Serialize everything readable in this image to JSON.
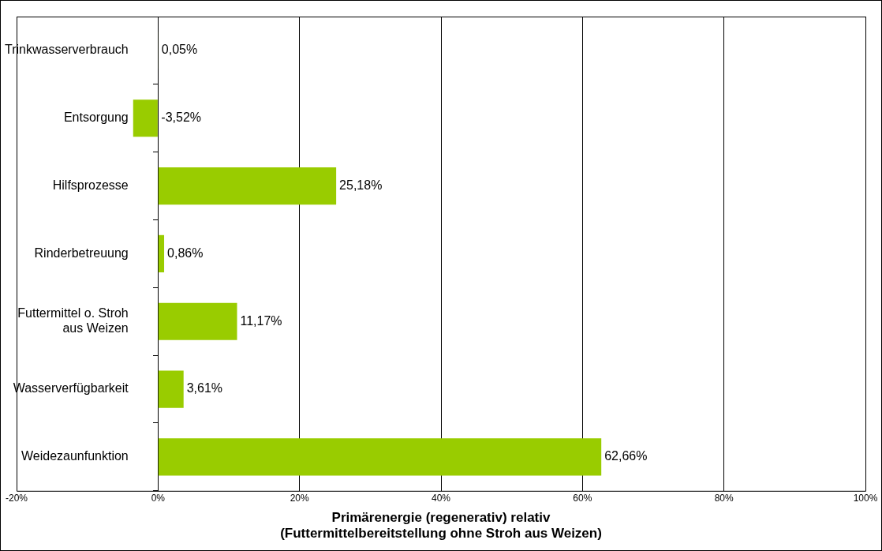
{
  "chart_data": {
    "type": "bar",
    "orientation": "horizontal",
    "categories": [
      "Trinkwasserverbrauch",
      "Entsorgung",
      "Hilfsprozesse",
      "Rinderbetreuung",
      "Futtermittel o. Stroh aus Weizen",
      "Wasserverfügbarkeit",
      "Weidezaunfunktion"
    ],
    "values": [
      0.05,
      -3.52,
      25.18,
      0.86,
      11.17,
      3.61,
      62.66
    ],
    "value_labels": [
      "0,05%",
      "-3,52%",
      "25,18%",
      "0,86%",
      "11,17%",
      "3,61%",
      "62,66%"
    ],
    "color": "#99cc00",
    "xlim": [
      -20,
      100
    ],
    "xticks": [
      {
        "value": -20,
        "label": "-20%"
      },
      {
        "value": 0,
        "label": "0%"
      },
      {
        "value": 20,
        "label": "20%"
      },
      {
        "value": 40,
        "label": "40%"
      },
      {
        "value": 60,
        "label": "60%"
      },
      {
        "value": 80,
        "label": "80%"
      },
      {
        "value": 100,
        "label": "100%"
      }
    ],
    "xlabel": "Primärenergie (regenerativ) relativ\n(Futtermittelbereitstellung ohne Stroh aus Weizen)",
    "grid": "x",
    "legend": false
  }
}
